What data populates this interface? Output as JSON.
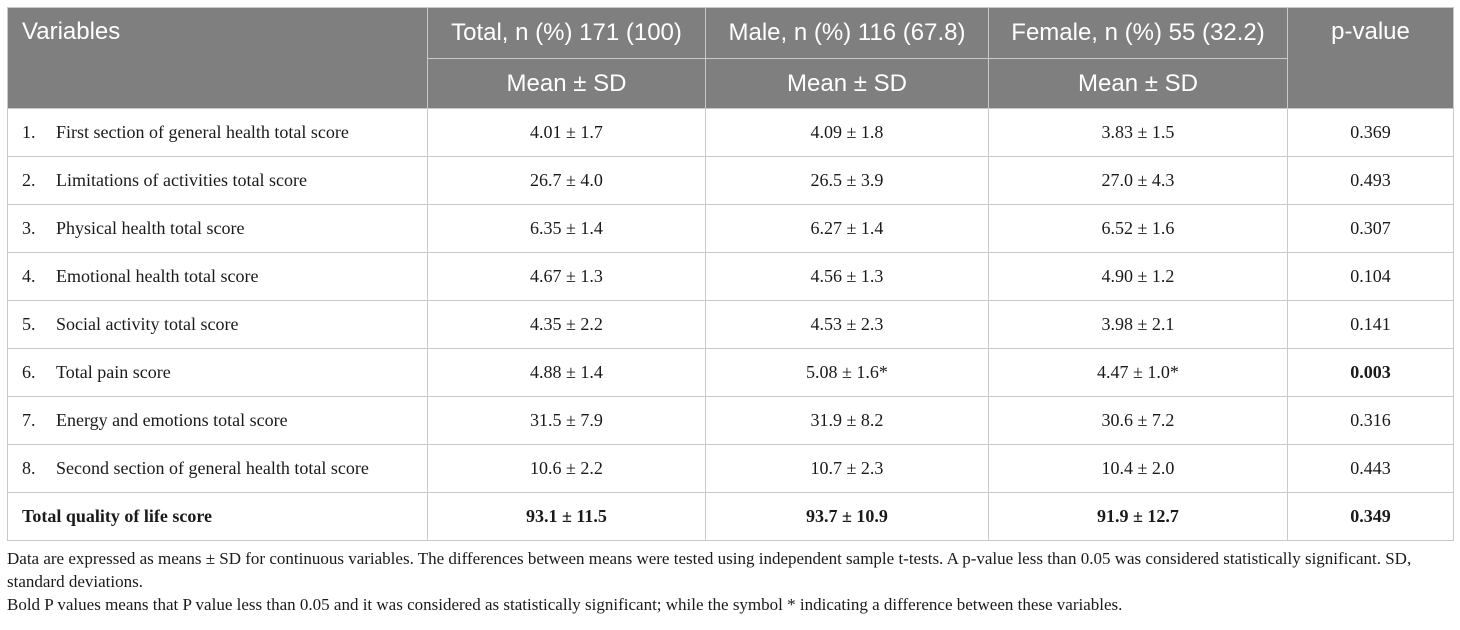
{
  "header": {
    "variables": "Variables",
    "total": "Total, n (%) 171 (100)",
    "male": "Male, n (%) 116 (67.8)",
    "female": "Female, n (%) 55 (32.2)",
    "pvalue": "p-value",
    "mean_sd": "Mean ± SD"
  },
  "rows": [
    {
      "num": "1.",
      "label": "First section of general health total score",
      "total": "4.01 ± 1.7",
      "male": "4.09 ± 1.8",
      "female": "3.83 ± 1.5",
      "p": "0.369"
    },
    {
      "num": "2.",
      "label": "Limitations of activities total score",
      "total": "26.7 ± 4.0",
      "male": "26.5 ± 3.9",
      "female": "27.0 ± 4.3",
      "p": "0.493"
    },
    {
      "num": "3.",
      "label": "Physical health total score",
      "total": "6.35 ± 1.4",
      "male": "6.27 ± 1.4",
      "female": "6.52 ± 1.6",
      "p": "0.307"
    },
    {
      "num": "4.",
      "label": "Emotional health total score",
      "total": "4.67 ± 1.3",
      "male": "4.56 ± 1.3",
      "female": "4.90 ± 1.2",
      "p": "0.104"
    },
    {
      "num": "5.",
      "label": "Social activity total score",
      "total": "4.35 ± 2.2",
      "male": "4.53 ± 2.3",
      "female": "3.98 ± 2.1",
      "p": "0.141"
    },
    {
      "num": "6.",
      "label": "Total pain score",
      "total": "4.88 ± 1.4",
      "male": "5.08 ± 1.6*",
      "female": "4.47 ± 1.0*",
      "p": "0.003"
    },
    {
      "num": "7.",
      "label": "Energy and emotions total score",
      "total": "31.5 ± 7.9",
      "male": "31.9 ± 8.2",
      "female": "30.6 ± 7.2",
      "p": "0.316"
    },
    {
      "num": "8.",
      "label": "Second section of general health total score",
      "total": "10.6 ± 2.2",
      "male": "10.7 ± 2.3",
      "female": "10.4 ± 2.0",
      "p": "0.443"
    }
  ],
  "total_row": {
    "label": "Total quality of life score",
    "total": "93.1 ± 11.5",
    "male": "93.7 ± 10.9",
    "female": "91.9 ± 12.7",
    "p": "0.349"
  },
  "notes": [
    "Data are expressed as means ± SD for continuous variables. The differences between means were tested using independent sample t-tests. A p-value less than 0.05 was considered statistically significant. SD, standard deviations.",
    "Bold P values means that P value less than 0.05 and it was considered as statistically significant; while the symbol * indicating a difference between these variables."
  ]
}
